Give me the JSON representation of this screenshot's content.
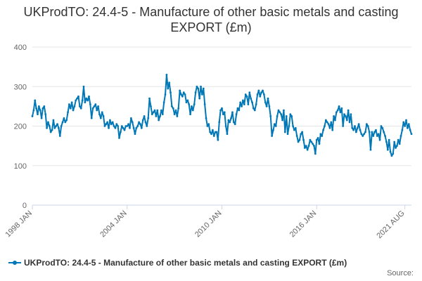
{
  "chart_data": {
    "type": "line",
    "title": "UKProdTO: 24.4-5 - Manufacture of other basic metals and casting EXPORT (£m)",
    "xlabel": "",
    "ylabel": "",
    "ylim": [
      0,
      400
    ],
    "yticks": [
      "0",
      "100",
      "200",
      "300",
      "400"
    ],
    "xticks": [
      {
        "label": "1998 JAN",
        "month_index": 0
      },
      {
        "label": "2004 JAN",
        "month_index": 72
      },
      {
        "label": "2010 JAN",
        "month_index": 144
      },
      {
        "label": "2016 JAN",
        "month_index": 216
      },
      {
        "label": "2021 AUG",
        "month_index": 283
      }
    ],
    "x_start": "1998 JAN",
    "x_end": "2021 AUG",
    "grid": "horizontal",
    "legend_position": "bottom-left",
    "series": [
      {
        "name": "UKProdTO: 24.4-5 - Manufacture of other basic metals and casting EXPORT (£m)",
        "color": "#0077b6",
        "values": [
          225,
          240,
          265,
          245,
          230,
          250,
          240,
          220,
          245,
          250,
          230,
          195,
          210,
          200,
          185,
          190,
          215,
          195,
          200,
          205,
          195,
          175,
          200,
          210,
          220,
          210,
          215,
          235,
          255,
          245,
          260,
          240,
          250,
          265,
          270,
          275,
          250,
          245,
          265,
          300,
          260,
          270,
          265,
          275,
          255,
          220,
          245,
          250,
          255,
          240,
          250,
          230,
          220,
          235,
          225,
          200,
          205,
          210,
          195,
          215,
          205,
          210,
          200,
          195,
          205,
          200,
          170,
          185,
          200,
          195,
          190,
          200,
          200,
          205,
          195,
          220,
          210,
          195,
          180,
          195,
          200,
          210,
          205,
          195,
          215,
          225,
          210,
          200,
          220,
          270,
          250,
          230,
          235,
          240,
          225,
          240,
          215,
          225,
          240,
          230,
          260,
          280,
          330,
          295,
          310,
          285,
          250,
          245,
          230,
          240,
          225,
          245,
          290,
          280,
          275,
          285,
          280,
          260,
          265,
          255,
          230,
          250,
          240,
          255,
          285,
          300,
          295,
          270,
          300,
          280,
          295,
          255,
          220,
          200,
          205,
          185,
          180,
          190,
          175,
          185,
          185,
          165,
          210,
          240,
          245,
          230,
          235,
          200,
          180,
          215,
          210,
          220,
          235,
          210,
          205,
          230,
          245,
          240,
          260,
          250,
          265,
          255,
          280,
          275,
          255,
          285,
          270,
          260,
          245,
          240,
          255,
          280,
          290,
          275,
          285,
          290,
          280,
          260,
          250,
          270,
          250,
          225,
          175,
          190,
          205,
          200,
          225,
          240,
          235,
          230,
          215,
          240,
          185,
          225,
          180,
          200,
          230,
          225,
          200,
          190,
          195,
          175,
          160,
          165,
          180,
          185,
          165,
          145,
          150,
          140,
          150,
          165,
          160,
          155,
          150,
          130,
          165,
          170,
          155,
          180,
          175,
          190,
          200,
          215,
          210,
          205,
          195,
          210,
          190,
          225,
          215,
          235,
          240,
          250,
          235,
          245,
          200,
          230,
          225,
          215,
          240,
          210,
          230,
          195,
          190,
          200,
          185,
          195,
          205,
          190,
          180,
          175,
          180,
          185,
          205,
          200,
          185,
          140,
          185,
          175,
          185,
          190,
          175,
          180,
          165,
          200,
          195,
          185,
          175,
          160,
          140,
          165,
          135,
          125,
          130,
          160,
          145,
          150,
          165,
          155,
          175,
          190,
          210,
          200,
          215,
          195,
          205,
          190,
          180
        ]
      }
    ]
  },
  "legend": {
    "label": "UKProdTO: 24.4-5 - Manufacture of other basic metals and casting EXPORT (£m)"
  },
  "footer": {
    "source": "Source:"
  }
}
